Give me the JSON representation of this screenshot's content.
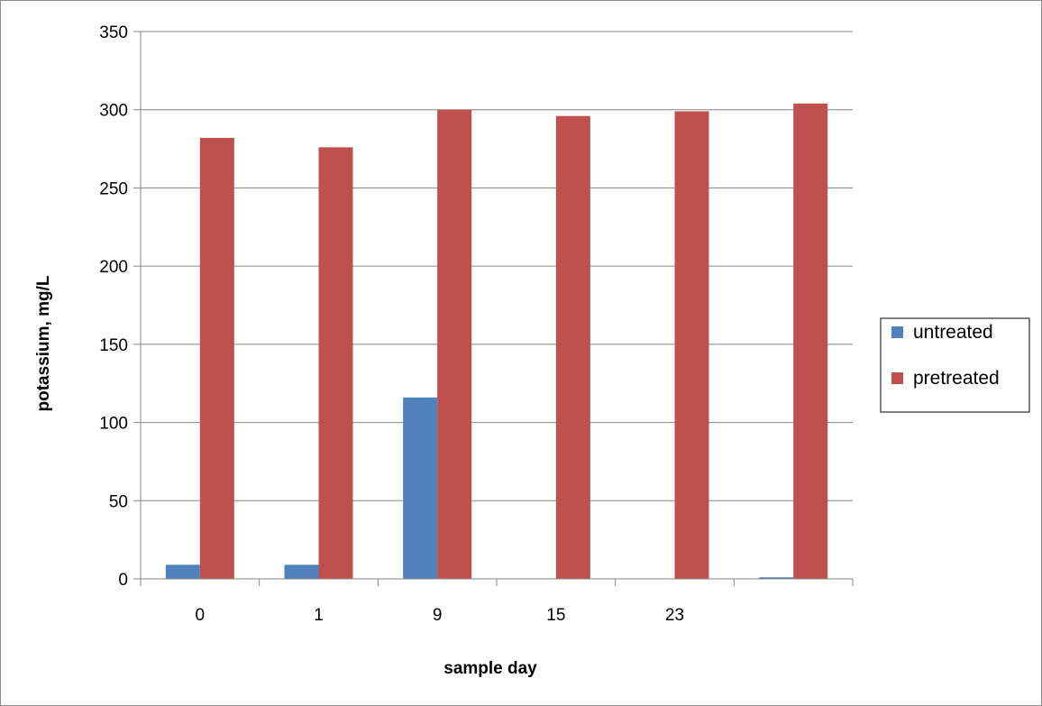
{
  "chart_data": {
    "type": "bar",
    "categories": [
      "0",
      "1",
      "9",
      "15",
      "23",
      ""
    ],
    "series": [
      {
        "name": "untreated",
        "color": "#4f81bd",
        "values": [
          9,
          9,
          116,
          0,
          0,
          1
        ]
      },
      {
        "name": "pretreated",
        "color": "#c0504d",
        "values": [
          282,
          276,
          300,
          296,
          299,
          304
        ]
      }
    ],
    "xlabel": "sample day",
    "ylabel": "potassium, mg/L",
    "ylim": [
      0,
      350
    ],
    "yticks": [
      "0",
      "50",
      "100",
      "150",
      "200",
      "250",
      "300",
      "350"
    ],
    "grid": true,
    "legend_position": "right"
  }
}
